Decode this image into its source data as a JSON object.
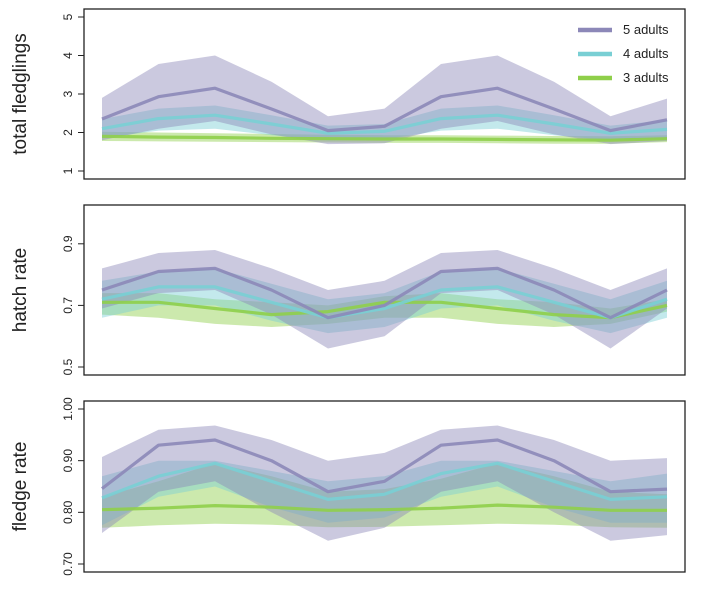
{
  "figure": {
    "legend": [
      {
        "label": "5 adults",
        "color": "#8c88b8"
      },
      {
        "label": "4 adults",
        "color": "#79cfd4"
      },
      {
        "label": "3 adults",
        "color": "#8fcf4a"
      }
    ]
  },
  "chart_data": [
    {
      "type": "line",
      "title": "",
      "xlabel": "",
      "ylabel": "total fledglings",
      "ylim": [
        1,
        5
      ],
      "yticks": [
        "1",
        "2",
        "3",
        "4",
        "5"
      ],
      "legend_position": "top-right",
      "x": [
        0,
        0.1,
        0.2,
        0.3,
        0.4,
        0.5,
        0.6,
        0.7,
        0.8,
        0.9,
        1.0
      ],
      "series": [
        {
          "name": "5 adults",
          "color": "#8c88b8",
          "values": [
            2.35,
            2.93,
            3.15,
            2.61,
            2.05,
            2.16,
            2.93,
            3.15,
            2.61,
            2.05,
            2.33
          ],
          "lower": [
            1.8,
            2.1,
            2.3,
            1.95,
            1.7,
            1.72,
            2.1,
            2.3,
            1.95,
            1.7,
            1.78
          ],
          "upper": [
            2.9,
            3.78,
            4.0,
            3.32,
            2.42,
            2.62,
            3.78,
            4.0,
            3.32,
            2.42,
            2.88
          ]
        },
        {
          "name": "4 adults",
          "color": "#79cfd4",
          "values": [
            2.1,
            2.36,
            2.45,
            2.22,
            1.98,
            2.03,
            2.36,
            2.45,
            2.22,
            1.98,
            2.08
          ],
          "lower": [
            1.85,
            2.05,
            2.1,
            1.93,
            1.8,
            1.82,
            2.05,
            2.1,
            1.93,
            1.8,
            1.84
          ],
          "upper": [
            2.35,
            2.62,
            2.7,
            2.45,
            2.18,
            2.22,
            2.62,
            2.7,
            2.45,
            2.18,
            2.32
          ]
        },
        {
          "name": "3 adults",
          "color": "#8fcf4a",
          "values": [
            1.9,
            1.88,
            1.87,
            1.85,
            1.84,
            1.83,
            1.83,
            1.82,
            1.81,
            1.8,
            1.84
          ],
          "lower": [
            1.78,
            1.77,
            1.76,
            1.75,
            1.74,
            1.73,
            1.73,
            1.72,
            1.71,
            1.71,
            1.75
          ],
          "upper": [
            2.02,
            2.0,
            1.98,
            1.96,
            1.94,
            1.93,
            1.93,
            1.92,
            1.91,
            1.9,
            1.93
          ]
        }
      ]
    },
    {
      "type": "line",
      "title": "",
      "xlabel": "",
      "ylabel": "hatch rate",
      "ylim": [
        0.5,
        1.0
      ],
      "yticks": [
        "0.5",
        "0.7",
        "0.9"
      ],
      "x": [
        0,
        0.1,
        0.2,
        0.3,
        0.4,
        0.5,
        0.6,
        0.7,
        0.8,
        0.9,
        1.0
      ],
      "series": [
        {
          "name": "5 adults",
          "color": "#8c88b8",
          "values": [
            0.75,
            0.81,
            0.82,
            0.75,
            0.66,
            0.7,
            0.81,
            0.82,
            0.75,
            0.66,
            0.75
          ],
          "lower": [
            0.69,
            0.74,
            0.75,
            0.67,
            0.56,
            0.6,
            0.74,
            0.75,
            0.67,
            0.56,
            0.69
          ],
          "upper": [
            0.82,
            0.87,
            0.88,
            0.82,
            0.75,
            0.78,
            0.87,
            0.88,
            0.82,
            0.75,
            0.82
          ]
        },
        {
          "name": "4 adults",
          "color": "#79cfd4",
          "values": [
            0.72,
            0.76,
            0.76,
            0.71,
            0.66,
            0.69,
            0.75,
            0.76,
            0.71,
            0.66,
            0.72
          ],
          "lower": [
            0.66,
            0.7,
            0.7,
            0.65,
            0.61,
            0.63,
            0.69,
            0.7,
            0.65,
            0.61,
            0.66
          ],
          "upper": [
            0.78,
            0.81,
            0.82,
            0.77,
            0.72,
            0.74,
            0.81,
            0.82,
            0.77,
            0.72,
            0.78
          ]
        },
        {
          "name": "3 adults",
          "color": "#8fcf4a",
          "values": [
            0.71,
            0.71,
            0.69,
            0.67,
            0.68,
            0.71,
            0.71,
            0.69,
            0.67,
            0.66,
            0.7
          ],
          "lower": [
            0.67,
            0.66,
            0.64,
            0.63,
            0.64,
            0.66,
            0.66,
            0.64,
            0.63,
            0.64,
            0.68
          ],
          "upper": [
            0.74,
            0.74,
            0.72,
            0.71,
            0.7,
            0.73,
            0.74,
            0.72,
            0.71,
            0.69,
            0.72
          ]
        }
      ]
    },
    {
      "type": "line",
      "title": "",
      "xlabel": "",
      "ylabel": "fledge rate",
      "ylim": [
        0.7,
        1.0
      ],
      "yticks": [
        "0.70",
        "0.80",
        "0.90",
        "1.00"
      ],
      "x": [
        0,
        0.1,
        0.2,
        0.3,
        0.4,
        0.5,
        0.6,
        0.7,
        0.8,
        0.9,
        1.0
      ],
      "series": [
        {
          "name": "5 adults",
          "color": "#8c88b8",
          "values": [
            0.846,
            0.93,
            0.94,
            0.9,
            0.84,
            0.86,
            0.93,
            0.94,
            0.9,
            0.84,
            0.845
          ],
          "lower": [
            0.76,
            0.84,
            0.86,
            0.8,
            0.745,
            0.77,
            0.84,
            0.86,
            0.8,
            0.745,
            0.756
          ],
          "upper": [
            0.907,
            0.96,
            0.968,
            0.94,
            0.9,
            0.915,
            0.96,
            0.968,
            0.94,
            0.9,
            0.905
          ]
        },
        {
          "name": "4 adults",
          "color": "#79cfd4",
          "values": [
            0.828,
            0.87,
            0.895,
            0.86,
            0.825,
            0.835,
            0.875,
            0.895,
            0.86,
            0.825,
            0.83
          ],
          "lower": [
            0.775,
            0.83,
            0.85,
            0.81,
            0.78,
            0.79,
            0.83,
            0.85,
            0.81,
            0.78,
            0.78
          ],
          "upper": [
            0.87,
            0.9,
            0.9,
            0.88,
            0.86,
            0.87,
            0.9,
            0.9,
            0.88,
            0.86,
            0.875
          ]
        },
        {
          "name": "3 adults",
          "color": "#8fcf4a",
          "values": [
            0.805,
            0.808,
            0.813,
            0.81,
            0.804,
            0.805,
            0.808,
            0.814,
            0.81,
            0.804,
            0.804
          ],
          "lower": [
            0.77,
            0.775,
            0.778,
            0.776,
            0.771,
            0.772,
            0.775,
            0.778,
            0.776,
            0.771,
            0.77
          ],
          "upper": [
            0.83,
            0.86,
            0.895,
            0.87,
            0.84,
            0.845,
            0.865,
            0.895,
            0.87,
            0.84,
            0.835
          ]
        }
      ]
    }
  ]
}
